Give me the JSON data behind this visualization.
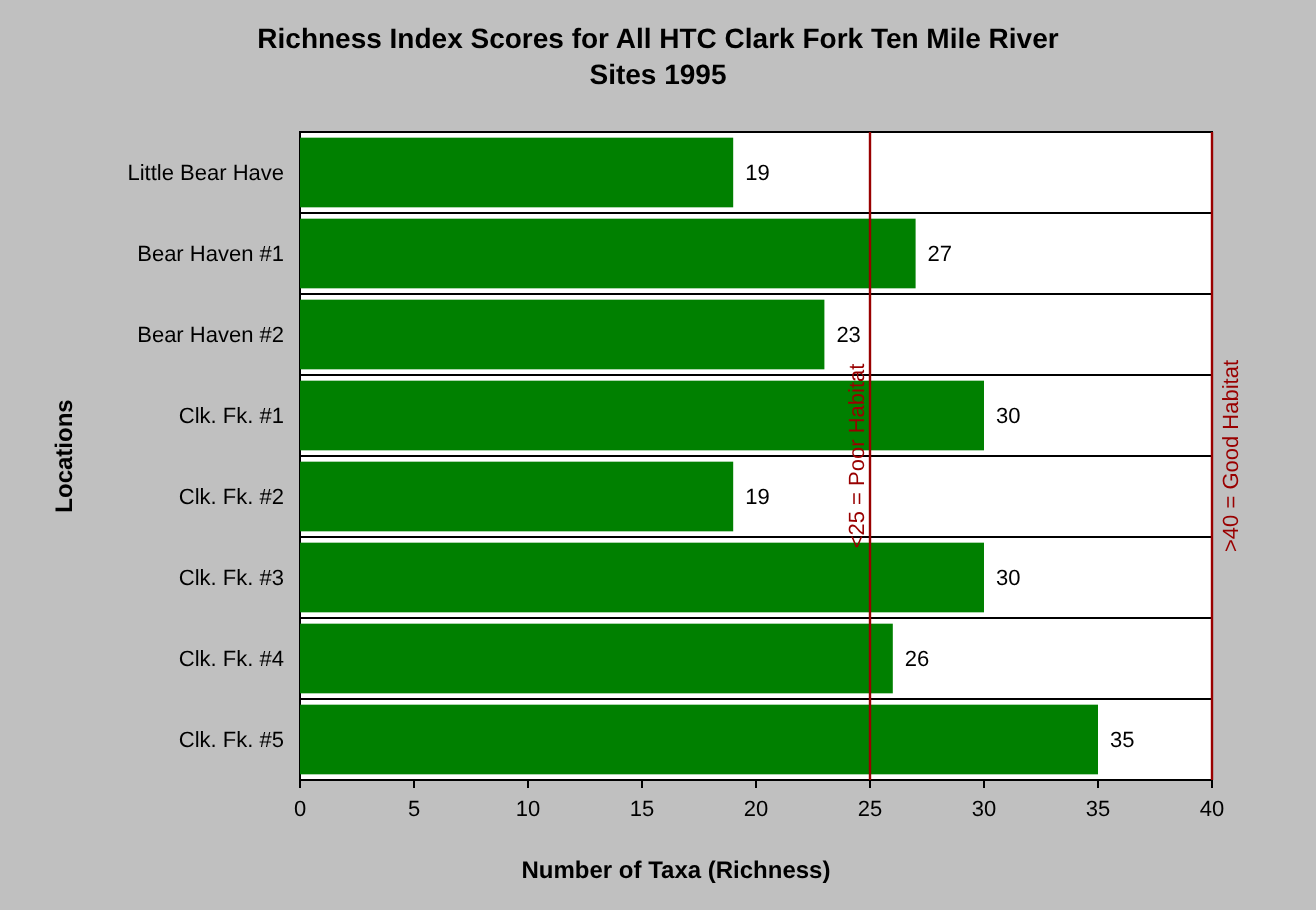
{
  "chart_data": {
    "type": "bar",
    "orientation": "horizontal",
    "title": "Richness Index Scores for All HTC Clark Fork Ten Mile River\nSites 1995",
    "xlabel": "Number of Taxa (Richness)",
    "ylabel": "Locations",
    "categories": [
      "Little Bear Have",
      "Bear Haven #1",
      "Bear Haven #2",
      "Clk. Fk. #1",
      "Clk. Fk. #2",
      "Clk. Fk. #3",
      "Clk. Fk. #4",
      "Clk. Fk. #5"
    ],
    "values": [
      19,
      27,
      23,
      30,
      19,
      30,
      26,
      35
    ],
    "color": "#008000",
    "data_labels": true,
    "xlim": [
      0,
      40
    ],
    "xticks": [
      0,
      5,
      10,
      15,
      20,
      25,
      30,
      35,
      40
    ],
    "grid": "y",
    "ref_lines": [
      {
        "axis": "x",
        "value": 25,
        "label": "<25 = Poor Habitat",
        "color": "#990000"
      },
      {
        "axis": "x",
        "value": 40,
        "label": ">40 = Good Habitat",
        "color": "#990000"
      }
    ]
  }
}
